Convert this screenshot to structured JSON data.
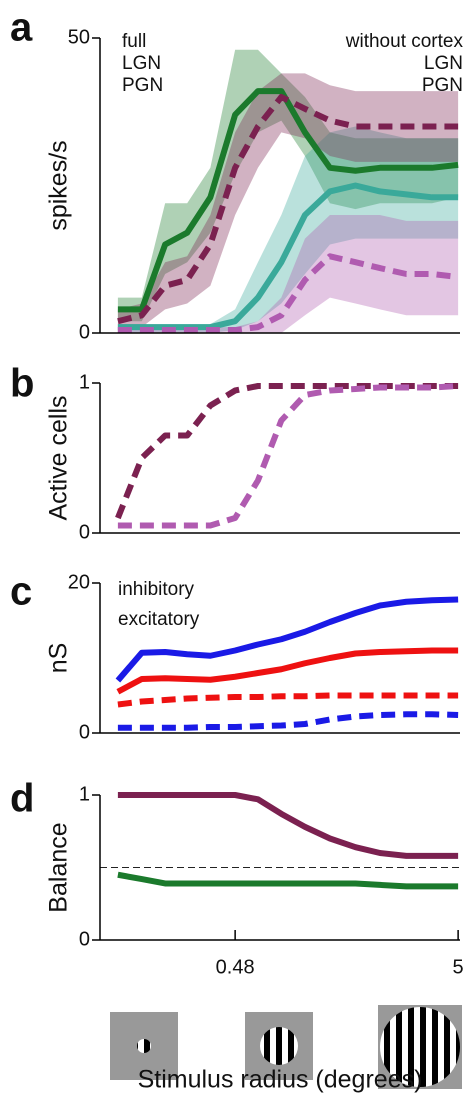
{
  "chart_data": [
    {
      "type": "line",
      "letter": "a",
      "ylabel": "spikes/s",
      "log_x": true,
      "xlim": [
        0.116,
        5.1
      ],
      "ylim": [
        0,
        50
      ],
      "yticks": [
        0,
        50
      ],
      "x": [
        0.14,
        0.18,
        0.23,
        0.29,
        0.37,
        0.48,
        0.61,
        0.78,
        1.0,
        1.3,
        1.7,
        2.2,
        2.9,
        3.8,
        5
      ],
      "legend_titles": [
        "full",
        "without cortex"
      ],
      "series": [
        {
          "name": "LGN",
          "color": "#1b7a2c",
          "dashed": false,
          "values": [
            4,
            4,
            15,
            17,
            23,
            37,
            41,
            41,
            34,
            28,
            27.5,
            28,
            28,
            28,
            28.5
          ],
          "upper": [
            6,
            6,
            22,
            22,
            28,
            48,
            48,
            44,
            40,
            34,
            33,
            33,
            33,
            33,
            33
          ],
          "lower": [
            2,
            2,
            10,
            12,
            17,
            27,
            34,
            36,
            30,
            22,
            21,
            22,
            22,
            22,
            23
          ]
        },
        {
          "name": "PGN",
          "color": "#3aa99a",
          "dashed": false,
          "values": [
            1,
            1,
            1,
            1,
            1,
            2,
            6,
            12,
            20,
            24,
            25,
            24,
            23.5,
            23,
            23
          ],
          "upper": [
            1.5,
            1.5,
            1.5,
            1.5,
            1.5,
            4,
            12,
            20,
            30,
            34,
            35,
            34,
            33,
            33,
            33
          ],
          "lower": [
            0,
            0,
            0,
            0,
            0,
            0.5,
            2,
            5,
            10,
            15,
            16,
            16,
            16,
            16,
            16
          ]
        },
        {
          "name": "LGN",
          "color": "#7b2150",
          "dashed": true,
          "values": [
            2,
            3,
            8,
            9,
            15,
            28,
            35,
            40,
            38,
            36,
            35,
            35,
            35,
            35,
            35
          ],
          "upper": [
            4,
            5,
            12,
            13,
            20,
            34,
            41,
            44,
            44,
            42,
            41,
            41,
            41,
            41,
            41
          ],
          "lower": [
            0,
            1,
            4,
            5,
            8,
            20,
            28,
            34,
            33,
            30,
            29,
            29,
            29,
            29,
            29
          ]
        },
        {
          "name": "PGN",
          "color": "#b05bb0",
          "dashed": true,
          "values": [
            0.5,
            0.5,
            0.5,
            0.5,
            0.5,
            0.5,
            1,
            3,
            9,
            13,
            12,
            11,
            10,
            10,
            9.5
          ],
          "upper": [
            1,
            1,
            1,
            1,
            1,
            1,
            2,
            6,
            16,
            20,
            20,
            20,
            19,
            19,
            19
          ],
          "lower": [
            0,
            0,
            0,
            0,
            0,
            0,
            0,
            0,
            3,
            6,
            5,
            4,
            3,
            3,
            3
          ]
        }
      ]
    },
    {
      "type": "line",
      "letter": "b",
      "ylabel": "Active cells",
      "log_x": true,
      "xlim": [
        0.116,
        5.1
      ],
      "ylim": [
        0,
        1
      ],
      "yticks": [
        0,
        1
      ],
      "x": [
        0.14,
        0.18,
        0.23,
        0.29,
        0.37,
        0.48,
        0.61,
        0.78,
        1.0,
        1.3,
        1.7,
        2.2,
        2.9,
        3.8,
        5
      ],
      "series": [
        {
          "color": "#7b2150",
          "dashed": true,
          "values": [
            0.1,
            0.5,
            0.65,
            0.65,
            0.85,
            0.95,
            0.98,
            0.98,
            0.98,
            0.98,
            0.98,
            0.98,
            0.98,
            0.98,
            0.98
          ]
        },
        {
          "color": "#b05bb0",
          "dashed": true,
          "values": [
            0.05,
            0.05,
            0.05,
            0.05,
            0.05,
            0.1,
            0.35,
            0.75,
            0.92,
            0.95,
            0.96,
            0.97,
            0.97,
            0.97,
            0.98
          ]
        }
      ]
    },
    {
      "type": "line",
      "letter": "c",
      "ylabel": "nS",
      "log_x": true,
      "xlim": [
        0.116,
        5.1
      ],
      "ylim": [
        0,
        20
      ],
      "yticks": [
        0,
        20
      ],
      "x": [
        0.14,
        0.18,
        0.23,
        0.29,
        0.37,
        0.48,
        0.61,
        0.78,
        1.0,
        1.3,
        1.7,
        2.2,
        2.9,
        3.8,
        5
      ],
      "series": [
        {
          "name": "inhibitory",
          "color": "#1a1ae6",
          "dashed": false,
          "values": [
            7,
            10.7,
            10.8,
            10.5,
            10.3,
            11,
            11.8,
            12.5,
            13.5,
            14.8,
            16,
            17,
            17.5,
            17.7,
            17.8
          ]
        },
        {
          "name": "excitatory",
          "color": "#ee1111",
          "dashed": false,
          "values": [
            5.5,
            7.2,
            7.3,
            7.2,
            7.1,
            7.5,
            8,
            8.5,
            9.3,
            10,
            10.6,
            10.8,
            10.9,
            11,
            11
          ]
        },
        {
          "color": "#ee1111",
          "dashed": true,
          "values": [
            3.8,
            4.2,
            4.4,
            4.6,
            4.7,
            4.8,
            4.8,
            4.9,
            4.9,
            5,
            5,
            5,
            5,
            5,
            5
          ]
        },
        {
          "color": "#1a1ae6",
          "dashed": true,
          "values": [
            0.7,
            0.7,
            0.7,
            0.7,
            0.8,
            0.8,
            0.9,
            1.0,
            1.2,
            1.8,
            2.2,
            2.4,
            2.5,
            2.5,
            2.4
          ]
        }
      ]
    },
    {
      "type": "line",
      "letter": "d",
      "ylabel": "Balance",
      "log_x": true,
      "xlabel": "Stimulus radius (degrees)",
      "xlim": [
        0.116,
        5.1
      ],
      "ylim": [
        0,
        1
      ],
      "yticks": [
        0,
        1
      ],
      "xticks": [
        0.48,
        5
      ],
      "hline": 0.5,
      "x": [
        0.14,
        0.18,
        0.23,
        0.29,
        0.37,
        0.48,
        0.61,
        0.78,
        1.0,
        1.3,
        1.7,
        2.2,
        2.9,
        3.8,
        5
      ],
      "series": [
        {
          "color": "#7b2150",
          "dashed": false,
          "values": [
            1,
            1,
            1,
            1,
            1,
            1,
            0.97,
            0.87,
            0.78,
            0.7,
            0.64,
            0.6,
            0.58,
            0.58,
            0.58
          ]
        },
        {
          "color": "#1b7a2c",
          "dashed": false,
          "values": [
            0.45,
            0.42,
            0.39,
            0.39,
            0.39,
            0.39,
            0.39,
            0.39,
            0.39,
            0.39,
            0.39,
            0.38,
            0.37,
            0.37,
            0.37
          ]
        }
      ]
    }
  ]
}
